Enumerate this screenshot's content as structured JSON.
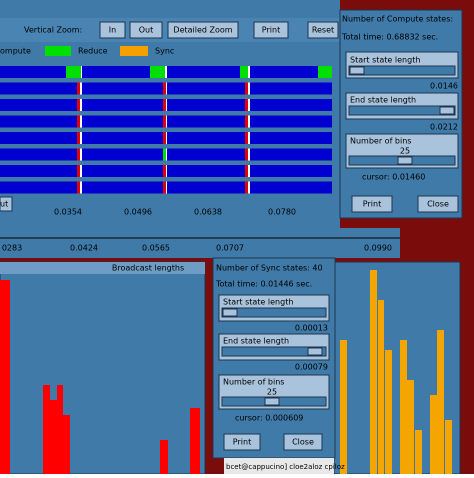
{
  "main_window": {
    "vertical_zoom_label": "Vertical Zoom:",
    "buttons": [
      "In",
      "Out",
      "Detailed Zoom",
      "Print",
      "Reset"
    ],
    "cut_button": "ut",
    "legend": [
      "ompute",
      "Reduce",
      "Sync"
    ],
    "timeline_ticks": [
      "0.0354",
      "0.0496",
      "0.0638",
      "0.0780"
    ],
    "overview_ticks": [
      "0283",
      "0.0424",
      "0.0565",
      "0.0707",
      "0.0990"
    ]
  },
  "compute_dialog": {
    "title": "Number of Compute states:",
    "total_time": "Total time: 0.68832 sec.",
    "start_label": "Start state length",
    "start_value": "0.0146",
    "end_label": "End state length",
    "end_value": "0.0212",
    "bins_label": "Number of bins",
    "bins_value": "25",
    "cursor": "cursor: 0.01460",
    "buttons": [
      "Print",
      "Close"
    ]
  },
  "broadcast_window": {
    "title": "Broadcast lengths"
  },
  "sync_dialog": {
    "title": "Number of Sync states:  40",
    "total_time": "Total time: 0.01446 sec.",
    "start_label": "Start state length",
    "start_value": "0.00013",
    "end_label": "End state length",
    "end_value": "0.00079",
    "bins_label": "Number of bins",
    "bins_value": "25",
    "cursor": "cursor: 0.000609",
    "buttons": [
      "Print",
      "Close"
    ]
  },
  "terminal": {
    "prompt": "bcet@cappucino] cloe2aloz cpiloz"
  }
}
